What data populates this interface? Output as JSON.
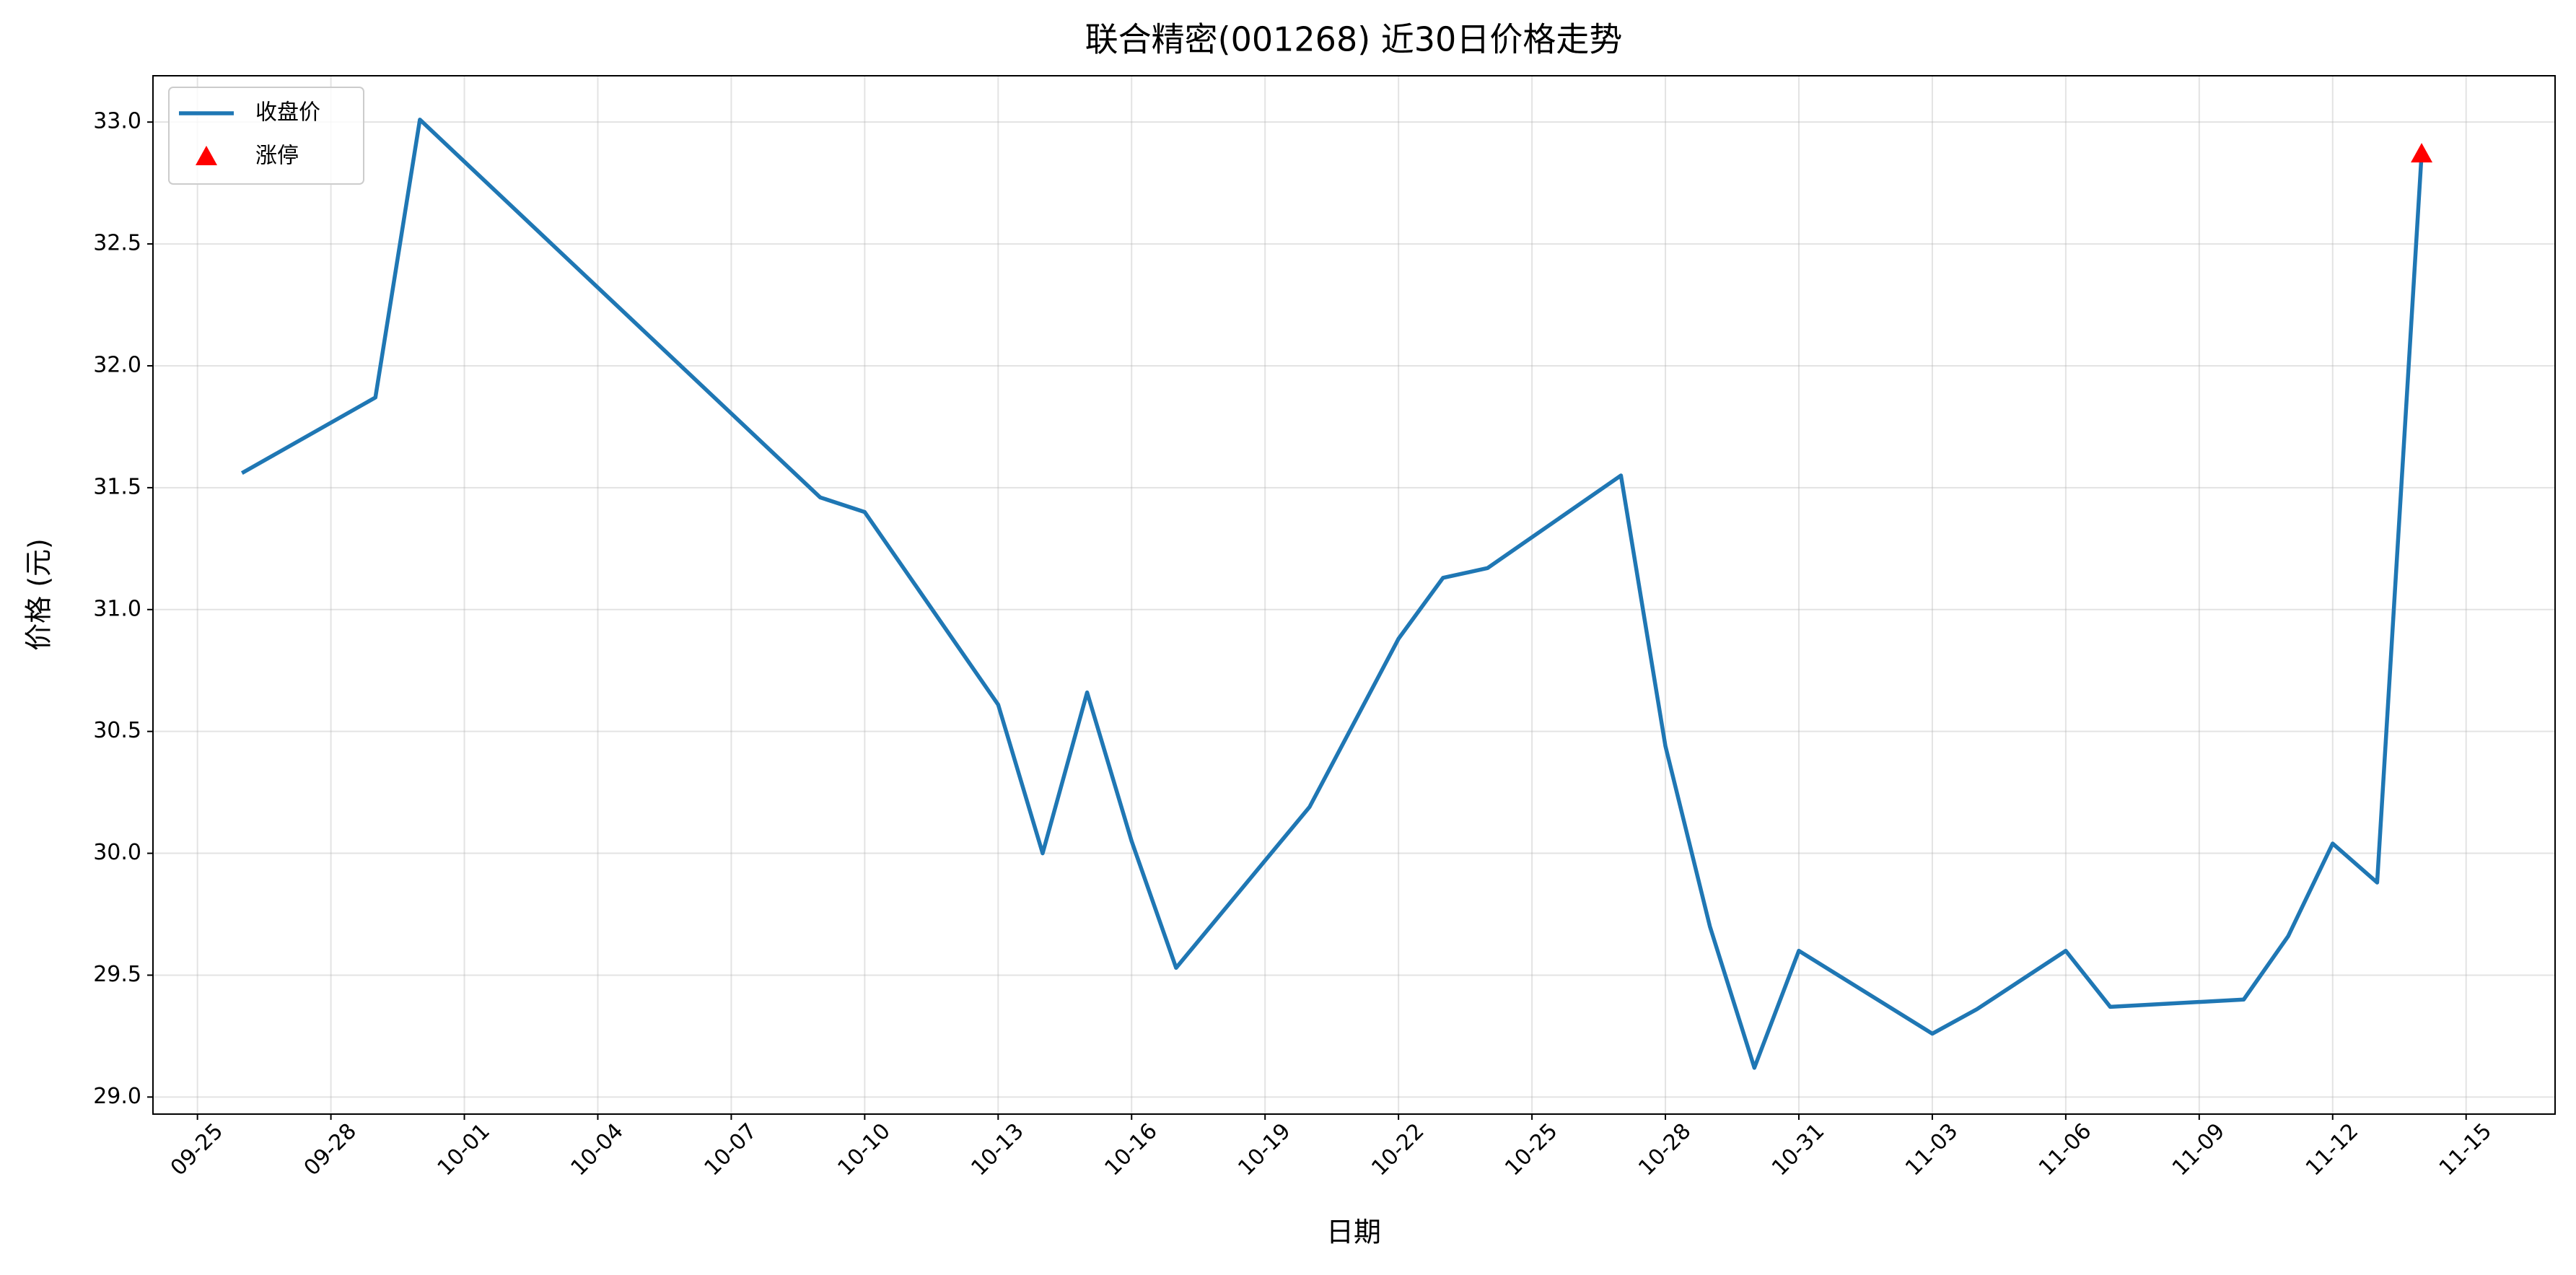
{
  "chart_data": {
    "type": "line",
    "title": "联合精密(001268) 近30日价格走势",
    "xlabel": "日期",
    "ylabel": "价格 (元)",
    "x": [
      "09-26",
      "09-29",
      "09-30",
      "10-09",
      "10-10",
      "10-13",
      "10-14",
      "10-15",
      "10-16",
      "10-17",
      "10-20",
      "10-22",
      "10-23",
      "10-24",
      "10-27",
      "10-28",
      "10-29",
      "10-30",
      "10-31",
      "11-03",
      "11-04",
      "11-06",
      "11-07",
      "11-10",
      "11-11",
      "11-12",
      "11-13",
      "11-14"
    ],
    "series": [
      {
        "name": "收盘价",
        "color": "#1f77b4",
        "values": [
          31.56,
          31.87,
          33.01,
          31.46,
          31.4,
          30.61,
          30.0,
          30.66,
          30.05,
          29.53,
          30.19,
          30.88,
          31.13,
          31.17,
          31.55,
          30.44,
          29.7,
          29.12,
          29.6,
          29.26,
          29.36,
          29.6,
          29.37,
          29.4,
          29.66,
          30.04,
          29.88,
          32.87
        ]
      },
      {
        "name": "涨停",
        "type": "scatter",
        "marker": "triangle",
        "color": "#ff0000",
        "x": [
          "11-14"
        ],
        "values": [
          32.87
        ]
      }
    ],
    "xlim": [
      "09-24",
      "11-17"
    ],
    "xticks": [
      "09-25",
      "09-28",
      "10-01",
      "10-04",
      "10-07",
      "10-10",
      "10-13",
      "10-16",
      "10-19",
      "10-22",
      "10-25",
      "10-28",
      "10-31",
      "11-03",
      "11-06",
      "11-09",
      "11-12",
      "11-15"
    ],
    "ylim": [
      28.93,
      33.19
    ],
    "yticks": [
      {
        "value": 29,
        "label": "29.0"
      },
      {
        "value": 29.5,
        "label": "29.5"
      },
      {
        "value": 30,
        "label": "30.0"
      },
      {
        "value": 30.5,
        "label": "30.5"
      },
      {
        "value": 31,
        "label": "31.0"
      },
      {
        "value": 31.5,
        "label": "31.5"
      },
      {
        "value": 32,
        "label": "32.0"
      },
      {
        "value": 32.5,
        "label": "32.5"
      },
      {
        "value": 33,
        "label": "33.0"
      }
    ],
    "grid": true,
    "legend": "upper left"
  }
}
